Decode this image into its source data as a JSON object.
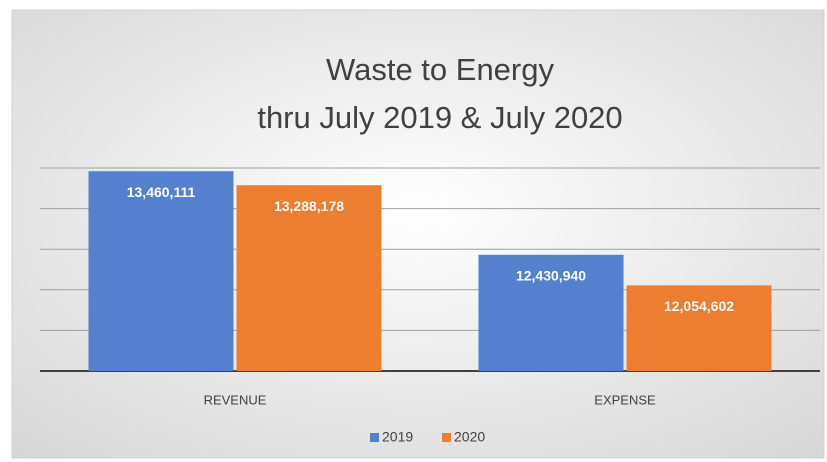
{
  "chart_data": {
    "type": "bar",
    "title": "Waste to Energy",
    "subtitle": "thru July 2019 & July 2020",
    "categories": [
      "REVENUE",
      "EXPENSE"
    ],
    "series": [
      {
        "name": "2019",
        "color": "#5580cf",
        "values": [
          13460111,
          12430940
        ],
        "value_labels": [
          "13,460,111",
          "12,430,940"
        ]
      },
      {
        "name": "2020",
        "color": "#ed7d31",
        "values": [
          13288178,
          12054602
        ],
        "value_labels": [
          "13,288,178",
          "12,054,602"
        ]
      }
    ],
    "ylim": [
      11000000,
      13500000
    ],
    "yticks": [
      11000000,
      11500000,
      12000000,
      12500000,
      13000000,
      13500000
    ],
    "grid": true,
    "legend": "bottom"
  }
}
